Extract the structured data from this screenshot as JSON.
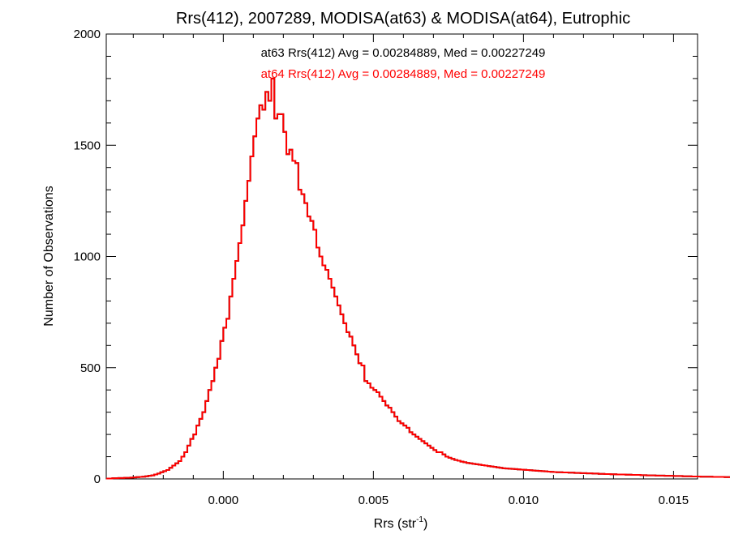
{
  "chart_data": {
    "type": "histogram",
    "title": "Rrs(412), 2007289, MODISA(at63) & MODISA(at64), Eutrophic",
    "xlabel_main": "Rrs (str",
    "xlabel_sup": "-1",
    "xlabel_close": ")",
    "ylabel": "Number of Observations",
    "xlim": [
      -0.0039,
      0.0158
    ],
    "ylim": [
      0,
      2000
    ],
    "xticks": [
      {
        "value": 0.0,
        "label": "0.000"
      },
      {
        "value": 0.005,
        "label": "0.005"
      },
      {
        "value": 0.01,
        "label": "0.010"
      },
      {
        "value": 0.015,
        "label": "0.015"
      }
    ],
    "yticks": [
      {
        "value": 0,
        "label": "0"
      },
      {
        "value": 500,
        "label": "500"
      },
      {
        "value": 1000,
        "label": "1000"
      },
      {
        "value": 1500,
        "label": "1500"
      },
      {
        "value": 2000,
        "label": "2000"
      }
    ],
    "annotations": [
      {
        "text": "at63 Rrs(412) Avg = 0.00284889, Med = 0.00227249",
        "color": "#000000"
      },
      {
        "text": "at64 Rrs(412) Avg = 0.00284889, Med = 0.00227249",
        "color": "#ff0000"
      }
    ],
    "series": [
      {
        "name": "at63",
        "color": "#000000",
        "bin_width": 0.0001,
        "bins_start": -0.0039,
        "counts": [
          2,
          2,
          3,
          3,
          4,
          4,
          5,
          5,
          6,
          7,
          8,
          9,
          10,
          12,
          14,
          16,
          20,
          24,
          30,
          35,
          40,
          50,
          60,
          70,
          80,
          100,
          120,
          150,
          180,
          200,
          240,
          270,
          300,
          350,
          400,
          440,
          500,
          540,
          620,
          680,
          720,
          820,
          900,
          980,
          1060,
          1140,
          1250,
          1340,
          1450,
          1540,
          1620,
          1680,
          1660,
          1740,
          1700,
          1800,
          1620,
          1640,
          1640,
          1560,
          1460,
          1480,
          1430,
          1420,
          1300,
          1280,
          1240,
          1180,
          1160,
          1120,
          1040,
          1000,
          960,
          940,
          900,
          860,
          820,
          780,
          740,
          700,
          660,
          640,
          600,
          560,
          520,
          510,
          440,
          430,
          410,
          400,
          390,
          370,
          350,
          330,
          320,
          300,
          280,
          260,
          250,
          240,
          230,
          210,
          200,
          190,
          180,
          170,
          160,
          150,
          140,
          130,
          120,
          120,
          110,
          100,
          95,
          90,
          85,
          82,
          78,
          75,
          72,
          70,
          68,
          66,
          64,
          62,
          60,
          58,
          56,
          54,
          52,
          50,
          48,
          47,
          46,
          45,
          44,
          43,
          42,
          41,
          40,
          39,
          38,
          37,
          36,
          35,
          34,
          33,
          32,
          31,
          30,
          30,
          29,
          29,
          28,
          28,
          27,
          27,
          26,
          26,
          25,
          25,
          24,
          24,
          23,
          23,
          22,
          22,
          21,
          21,
          20,
          20,
          20,
          19,
          19,
          18,
          18,
          18,
          17,
          17,
          16,
          16,
          16,
          15,
          15,
          15,
          14,
          14,
          14,
          13,
          13,
          13,
          12,
          12,
          12,
          11,
          11,
          11,
          10,
          10,
          10,
          10,
          9,
          9,
          9,
          9,
          8,
          8,
          8,
          8,
          7
        ]
      },
      {
        "name": "at64",
        "color": "#ff0000",
        "bin_width": 0.0001,
        "bins_start": -0.0039,
        "counts": [
          2,
          2,
          3,
          3,
          4,
          4,
          5,
          5,
          6,
          7,
          8,
          9,
          10,
          12,
          14,
          16,
          20,
          24,
          30,
          35,
          40,
          50,
          60,
          70,
          80,
          100,
          120,
          150,
          180,
          200,
          240,
          270,
          300,
          350,
          400,
          440,
          500,
          540,
          620,
          680,
          720,
          820,
          900,
          980,
          1060,
          1140,
          1250,
          1340,
          1450,
          1540,
          1620,
          1680,
          1660,
          1740,
          1700,
          1800,
          1620,
          1640,
          1640,
          1560,
          1460,
          1480,
          1430,
          1420,
          1300,
          1280,
          1240,
          1180,
          1160,
          1120,
          1040,
          1000,
          960,
          940,
          900,
          860,
          820,
          780,
          740,
          700,
          660,
          640,
          600,
          560,
          520,
          510,
          440,
          430,
          410,
          400,
          390,
          370,
          350,
          330,
          320,
          300,
          280,
          260,
          250,
          240,
          230,
          210,
          200,
          190,
          180,
          170,
          160,
          150,
          140,
          130,
          120,
          120,
          110,
          100,
          95,
          90,
          85,
          82,
          78,
          75,
          72,
          70,
          68,
          66,
          64,
          62,
          60,
          58,
          56,
          54,
          52,
          50,
          48,
          47,
          46,
          45,
          44,
          43,
          42,
          41,
          40,
          39,
          38,
          37,
          36,
          35,
          34,
          33,
          32,
          31,
          30,
          30,
          29,
          29,
          28,
          28,
          27,
          27,
          26,
          26,
          25,
          25,
          24,
          24,
          23,
          23,
          22,
          22,
          21,
          21,
          20,
          20,
          20,
          19,
          19,
          18,
          18,
          18,
          17,
          17,
          16,
          16,
          16,
          15,
          15,
          15,
          14,
          14,
          14,
          13,
          13,
          13,
          12,
          12,
          12,
          11,
          11,
          11,
          10,
          10,
          10,
          10,
          9,
          9,
          9,
          9,
          8,
          8,
          8,
          8,
          7
        ]
      }
    ]
  }
}
